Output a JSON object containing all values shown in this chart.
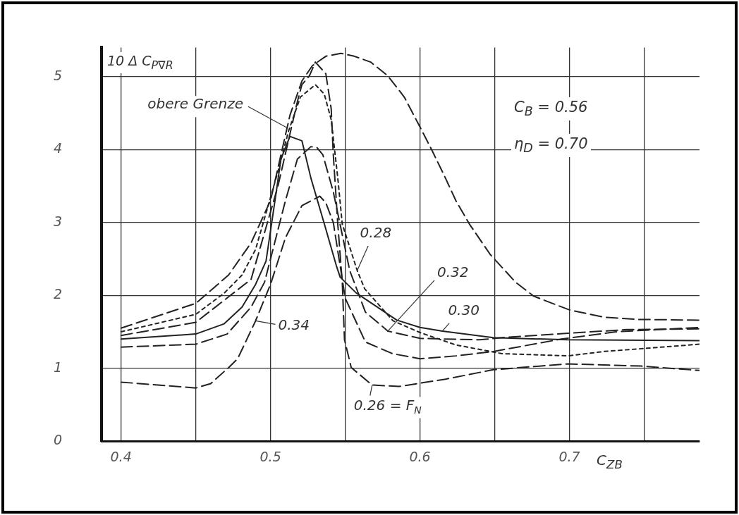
{
  "chart_data": {
    "type": "line",
    "xlabel": "C$_{ZB}$",
    "ylabel": "10 Δ C$_{P∇R}$",
    "xlim": [
      0.387,
      0.787
    ],
    "ylim": [
      0,
      5.4
    ],
    "xticks": [
      0.4,
      {
        "value": 0.45,
        "label": null
      },
      0.5,
      {
        "value": 0.55,
        "label": null
      },
      0.6,
      {
        "value": 0.65,
        "label": null
      },
      0.7,
      {
        "value": 0.75,
        "label": null
      }
    ],
    "yticks": [
      0,
      1,
      2,
      3,
      4,
      5
    ],
    "grid": true,
    "marker": "none",
    "series": [
      {
        "color": "#222222",
        "line_style": "dashed",
        "x": [
          0.4,
          0.45,
          0.472,
          0.487,
          0.5,
          0.507,
          0.513,
          0.521,
          0.528,
          0.537,
          0.547,
          0.556,
          0.567,
          0.5785,
          0.5895,
          0.6,
          0.608,
          0.617,
          0.624,
          0.633,
          0.647,
          0.664,
          0.676,
          0.7,
          0.723,
          0.746,
          0.787
        ],
        "values": [
          1.55,
          1.89,
          2.28,
          2.72,
          3.3,
          3.93,
          4.47,
          4.94,
          5.15,
          5.28,
          5.32,
          5.28,
          5.2,
          5.01,
          4.72,
          4.31,
          3.99,
          3.61,
          3.3,
          2.98,
          2.56,
          2.18,
          1.99,
          1.8,
          1.7,
          1.67,
          1.66
        ]
      },
      {
        "color": "#222222",
        "line_style": "dotted",
        "x": [
          0.4,
          0.45,
          0.469,
          0.481,
          0.49,
          0.505,
          0.512,
          0.52,
          0.53,
          0.536,
          0.5406,
          0.545,
          0.548,
          0.558,
          0.563,
          0.582,
          0.6,
          0.624,
          0.655,
          0.699,
          0.723,
          0.749,
          0.787
        ],
        "values": [
          1.5,
          1.74,
          2.03,
          2.28,
          2.63,
          3.7,
          4.25,
          4.72,
          4.89,
          4.76,
          4.41,
          3.61,
          2.98,
          2.34,
          2.09,
          1.65,
          1.49,
          1.32,
          1.2,
          1.17,
          1.23,
          1.27,
          1.33
        ]
      },
      {
        "color": "#222222",
        "line_style": "solid",
        "x": [
          0.4,
          0.45,
          0.469,
          0.481,
          0.49,
          0.497,
          0.503,
          0.507,
          0.513,
          0.521,
          0.527,
          0.536,
          0.544,
          0.5466,
          0.5575,
          0.5845,
          0.6,
          0.615,
          0.649,
          0.699,
          0.787
        ],
        "values": [
          1.4,
          1.47,
          1.61,
          1.84,
          2.15,
          2.47,
          3.3,
          3.87,
          4.18,
          4.12,
          3.61,
          2.98,
          2.41,
          2.25,
          2.03,
          1.66,
          1.56,
          1.51,
          1.42,
          1.39,
          1.38
        ]
      },
      {
        "color": "#222222",
        "line_style": "dashed",
        "x": [
          0.4,
          0.45,
          0.471,
          0.487,
          0.496,
          0.51,
          0.518,
          0.527,
          0.531,
          0.535,
          0.542,
          0.553,
          0.5635,
          0.5785,
          0.6,
          0.64,
          0.655,
          0.699,
          0.738,
          0.787
        ],
        "values": [
          1.29,
          1.33,
          1.47,
          1.84,
          2.18,
          3.3,
          3.87,
          4.04,
          4.03,
          3.93,
          3.42,
          2.34,
          1.77,
          1.51,
          1.41,
          1.39,
          1.42,
          1.48,
          1.53,
          1.54
        ]
      },
      {
        "color": "#222222",
        "line_style": "dashed",
        "x": [
          0.4,
          0.45,
          0.46,
          0.472,
          0.478,
          0.49,
          0.5,
          0.51,
          0.521,
          0.533,
          0.537,
          0.542,
          0.55,
          0.5635,
          0.5817,
          0.6,
          0.624,
          0.649,
          0.6945,
          0.731,
          0.787
        ],
        "values": [
          0.81,
          0.73,
          0.79,
          1.01,
          1.13,
          1.65,
          2.15,
          2.79,
          3.23,
          3.36,
          3.27,
          3.0,
          1.96,
          1.36,
          1.2,
          1.13,
          1.17,
          1.23,
          1.4,
          1.5,
          1.56
        ]
      },
      {
        "color": "#222222",
        "line_style": "dashed",
        "x": [
          0.4,
          0.45,
          0.487,
          0.505,
          0.518,
          0.521,
          0.526,
          0.53,
          0.537,
          0.5406,
          0.542,
          0.544,
          0.545,
          0.548,
          0.5495,
          0.554,
          0.568,
          0.586,
          0.617,
          0.649,
          0.699,
          0.748,
          0.787
        ],
        "values": [
          1.45,
          1.63,
          2.22,
          3.5,
          4.66,
          4.89,
          5.01,
          5.2,
          5.04,
          4.56,
          3.93,
          3.3,
          2.98,
          2.18,
          1.39,
          1.01,
          0.77,
          0.75,
          0.85,
          0.98,
          1.06,
          1.03,
          0.97
        ]
      }
    ],
    "annotations": [
      {
        "text": "obere Grenze",
        "x": 0.511,
        "y": 4.3
      },
      {
        "text": "0.28",
        "x": 0.558,
        "y": 2.34
      },
      {
        "text": "0.32",
        "x": 0.5785,
        "y": 1.51
      },
      {
        "text": "0.30",
        "x": 0.615,
        "y": 1.51
      },
      {
        "text": "0.34",
        "x": 0.49,
        "y": 1.65
      },
      {
        "text": "0.26 = F$_{N}$",
        "x": 0.568,
        "y": 0.77
      },
      "C$_{B}$ =  0.56",
      "η$_{D}$ =  0.70"
    ]
  }
}
